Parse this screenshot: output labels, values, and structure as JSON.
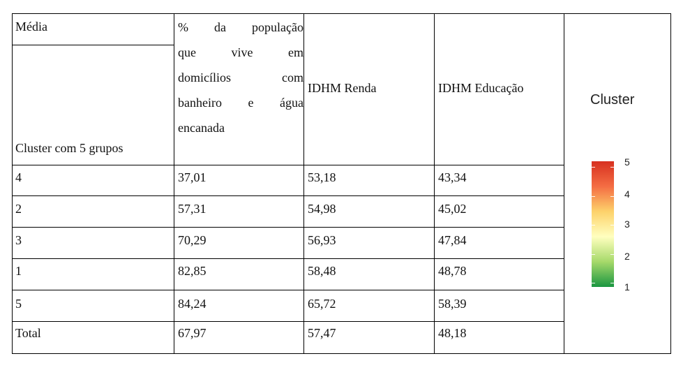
{
  "table": {
    "corner_top": "Média",
    "corner_bottom": "Cluster com 5 grupos",
    "header_pop_lines": [
      [
        "%",
        "da",
        "população"
      ],
      [
        "que",
        "vive",
        "em"
      ],
      [
        "domicílios",
        "com"
      ],
      [
        "banheiro",
        "e",
        "água"
      ],
      [
        "encanada"
      ]
    ],
    "header_renda": "IDHM Renda",
    "header_educacao": "IDHM Educação",
    "rows": [
      {
        "cluster": "4",
        "pop": "37,01",
        "renda": "53,18",
        "educacao": "43,34"
      },
      {
        "cluster": "2",
        "pop": "57,31",
        "renda": "54,98",
        "educacao": "45,02"
      },
      {
        "cluster": "3",
        "pop": "70,29",
        "renda": "56,93",
        "educacao": "47,84"
      },
      {
        "cluster": "1",
        "pop": "82,85",
        "renda": "58,48",
        "educacao": "48,78"
      },
      {
        "cluster": "5",
        "pop": "84,24",
        "renda": "65,72",
        "educacao": "58,39"
      },
      {
        "cluster": "Total",
        "pop": "67,97",
        "renda": "57,47",
        "educacao": "48,18"
      }
    ]
  },
  "legend": {
    "title": "Cluster",
    "ticks": [
      "5",
      "4",
      "3",
      "2",
      "1"
    ],
    "colors": [
      "#d7301f",
      "#f46d43",
      "#fdd26b",
      "#ffffbf",
      "#a6d96a",
      "#1a9641"
    ]
  }
}
